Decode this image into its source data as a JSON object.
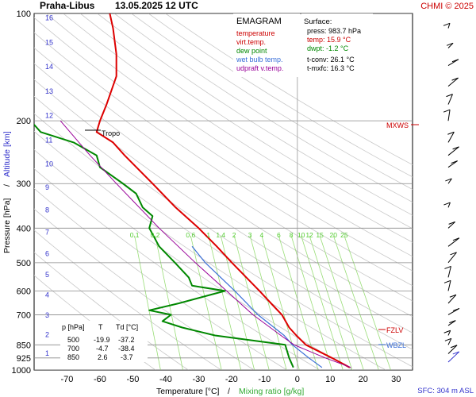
{
  "header": {
    "station": "Praha-Libus",
    "datetime": "13.05.2025 12 UTC",
    "credit": "CHMI © 2025"
  },
  "legend": {
    "title": "EMAGRAM",
    "items": [
      {
        "label": "temperature",
        "color": "#cc0000"
      },
      {
        "label": "virt.temp.",
        "color": "#cc0000"
      },
      {
        "label": "dew point",
        "color": "#008800"
      },
      {
        "label": "wet bulb temp.",
        "color": "#3a6fd8"
      },
      {
        "label": "udpraft v.temp.",
        "color": "#990099"
      }
    ]
  },
  "surface": {
    "heading": "Surface:",
    "press": "press: 983.7 hPa",
    "temp": "temp: 15.9 °C",
    "dwpt": "dwpt: -1.2 °C",
    "tconv": "t-conv: 26.1 °C",
    "tmxfc": "t-mxfc: 16.3 °C"
  },
  "level_table": {
    "headers": [
      "p [hPa]",
      "T",
      "Td [°C]"
    ],
    "rows": [
      [
        "500",
        "-19.9",
        "-37.2"
      ],
      [
        "700",
        "-4.7",
        "-38.4"
      ],
      [
        "850",
        "2.6",
        "-3.7"
      ]
    ]
  },
  "markers": {
    "tropo": "Tropo",
    "mxws": "MXWS",
    "fzlv": "FZLV",
    "wbzl": "WBZL"
  },
  "footer": {
    "xlabel_temp": "Temperature [°C]",
    "xlabel_sep": "/",
    "xlabel_mix": "Mixing ratio [g/kg]",
    "sfc": "SFC: 304 m ASL"
  },
  "axis_titles": {
    "pressure": "Pressure [hPa]",
    "sep": "/",
    "altitude": "Altitude [km]"
  },
  "colors": {
    "temperature": "#dd0000",
    "dewpoint": "#008800",
    "wetbulb": "#3a6fd8",
    "parcel": "#990099",
    "isobar": "#888888",
    "mixing": "#99dd77",
    "dryadiabat": "#c8c8c8",
    "altitude": "#3333cc",
    "wind": "#000000"
  },
  "chart_data": {
    "type": "line",
    "y_axis": {
      "quantity": "pressure",
      "unit": "hPa",
      "scale": "log",
      "range": [
        1000,
        100
      ],
      "ticks": [
        100,
        200,
        300,
        400,
        500,
        600,
        700,
        850,
        925,
        1000
      ]
    },
    "x_axis": {
      "quantity": "temperature",
      "unit": "°C",
      "range": [
        -80,
        35
      ],
      "ticks": [
        -70,
        -60,
        -50,
        -40,
        -30,
        -20,
        -10,
        0,
        10,
        20,
        30
      ]
    },
    "altitude_km_labels": [
      "1",
      "2",
      "3",
      "4",
      "5",
      "6",
      "7",
      "8",
      "9",
      "10",
      "11",
      "12",
      "13",
      "14",
      "15",
      "16"
    ],
    "mixing_ratio_labels": [
      "0.1",
      "0.2",
      "0.6",
      "1",
      "1.4",
      "2",
      "3",
      "4",
      "6",
      "8",
      "10",
      "12",
      "15",
      "20",
      "25"
    ],
    "series": [
      {
        "name": "temperature",
        "p": [
          983.7,
          925,
          850,
          800,
          760,
          700,
          650,
          600,
          550,
          500,
          450,
          400,
          350,
          300,
          250,
          230,
          215,
          200,
          180,
          150,
          130,
          110,
          100
        ],
        "t": [
          15.9,
          10.5,
          2.6,
          -0.3,
          -2.5,
          -4.7,
          -8,
          -11.5,
          -15.5,
          -19.9,
          -24.5,
          -30,
          -37,
          -44,
          -52.5,
          -56,
          -61,
          -60,
          -58,
          -55,
          -55,
          -56,
          -57
        ]
      },
      {
        "name": "dew point",
        "p": [
          983.7,
          925,
          850,
          800,
          760,
          730,
          700,
          680,
          650,
          600,
          580,
          550,
          500,
          450,
          400,
          370,
          350,
          320,
          300,
          270,
          250,
          230,
          215,
          205,
          200
        ],
        "t": [
          -1.2,
          -2.5,
          -3.7,
          -25,
          -35,
          -41,
          -38.4,
          -45,
          -36,
          -22,
          -32,
          -33,
          -37.2,
          -42,
          -45,
          -44,
          -47,
          -49,
          -53,
          -60,
          -61,
          -68,
          -78,
          -80,
          -83
        ]
      },
      {
        "name": "wet bulb temp.",
        "p": [
          983.7,
          925,
          850,
          800,
          700,
          600,
          500,
          450
        ],
        "t": [
          7.5,
          3.5,
          -1.5,
          -4,
          -12,
          -19,
          -28,
          -32
        ]
      },
      {
        "name": "udpraft v.temp.",
        "p": [
          983.7,
          925,
          850,
          800,
          700,
          600,
          500,
          400,
          300,
          250,
          200
        ],
        "t": [
          16.3,
          8.5,
          -1,
          -5,
          -13.5,
          -21.5,
          -31,
          -42,
          -55,
          -63,
          -72
        ]
      }
    ],
    "mixing_ratios": [
      0.1,
      0.2,
      0.6,
      1,
      1.4,
      2,
      3,
      4,
      6,
      8,
      10,
      12,
      15,
      20,
      25
    ],
    "dry_adiabats_K": [
      230,
      240,
      250,
      260,
      270,
      280,
      290,
      300,
      310,
      320,
      330,
      340,
      350,
      360,
      370,
      380,
      390,
      400,
      410,
      420,
      430,
      440,
      450
    ],
    "tropopause_hPa": 215,
    "mxws_hPa": 203,
    "fzlv_hPa": 776,
    "wbzl_hPa": 850,
    "surface_hPa": 983.7
  }
}
